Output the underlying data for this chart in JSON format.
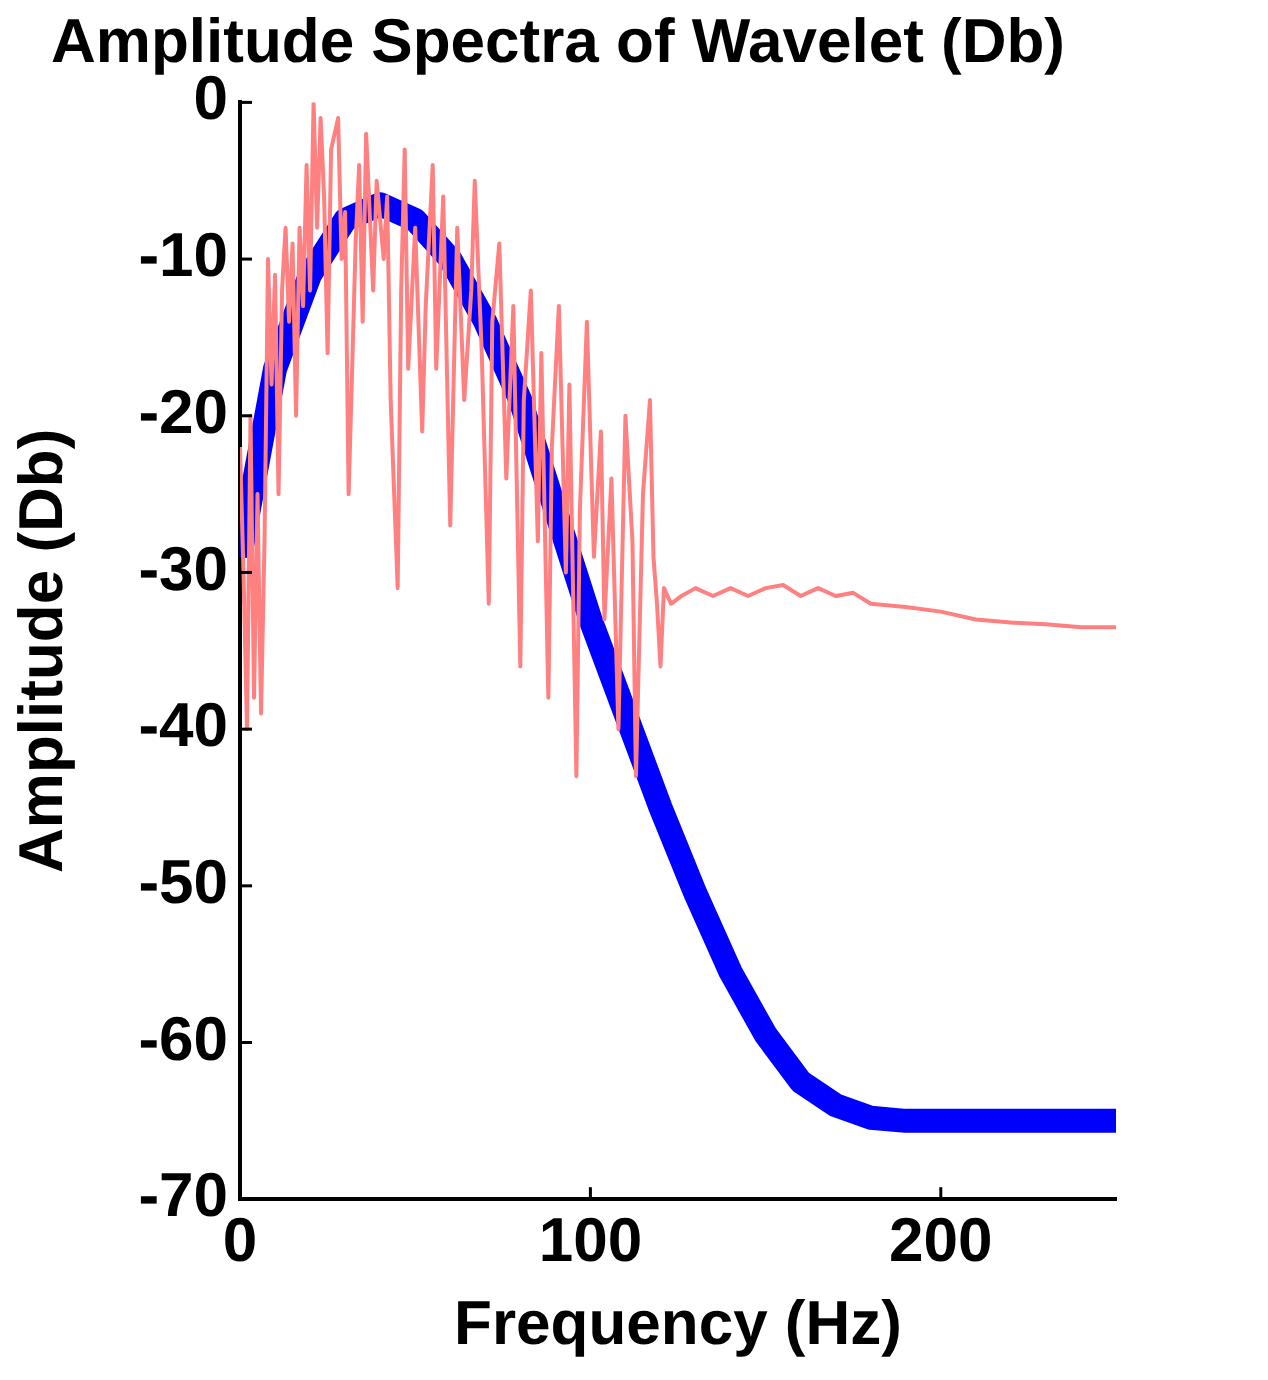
{
  "chart_data": {
    "type": "line",
    "title": "Amplitude Spectra of Wavelet (Db)",
    "xlabel": "Frequency (Hz)",
    "ylabel": "Amplitude (Db)",
    "xlim": [
      0,
      250
    ],
    "xticks": [
      0,
      100,
      200
    ],
    "ylim": [
      -70,
      0
    ],
    "yticks": [
      -70,
      -60,
      -50,
      -40,
      -30,
      -20,
      -10,
      0
    ],
    "grid": false,
    "legend": false,
    "marker": "none",
    "line_style": "solid",
    "series": [
      {
        "color": "#ff8080",
        "x": [
          0,
          1,
          2,
          3,
          4,
          5,
          6,
          7,
          8,
          9,
          10,
          11,
          12,
          13,
          14,
          15,
          16,
          17,
          18,
          19,
          20,
          21,
          22,
          23,
          24,
          25,
          26,
          28,
          29,
          30,
          31,
          33,
          34,
          35,
          36,
          38,
          39,
          41,
          42,
          43,
          45,
          46,
          47,
          48,
          50,
          52,
          53,
          55,
          56,
          58,
          60,
          62,
          64,
          66,
          67,
          69,
          71,
          72,
          74,
          76,
          78,
          80,
          81,
          83,
          85,
          86,
          88,
          89,
          91,
          93,
          94,
          96,
          97,
          99,
          101,
          103,
          104,
          106,
          108,
          110,
          112,
          113,
          115,
          117,
          118,
          119,
          120,
          121,
          123,
          126,
          130,
          135,
          140,
          145,
          150,
          155,
          160,
          165,
          170,
          175,
          180,
          190,
          200,
          210,
          220,
          230,
          240,
          250
        ],
        "values": [
          -22,
          -30,
          -40,
          -20,
          -38,
          -25,
          -39,
          -28,
          -10,
          -18,
          -11,
          -25,
          -12,
          -8,
          -14,
          -9,
          -20,
          -8,
          -13,
          -4,
          -12,
          0,
          -8,
          -1,
          -6,
          -16,
          -3,
          -1,
          -10,
          -7,
          -25,
          -9,
          -4,
          -14,
          -2,
          -12,
          -5,
          -10,
          -6,
          -19,
          -31,
          -12,
          -3,
          -17,
          -8,
          -21,
          -13,
          -4,
          -17,
          -6,
          -27,
          -8,
          -19,
          -12,
          -5,
          -16,
          -32,
          -14,
          -9,
          -24,
          -13,
          -36,
          -19,
          -12,
          -28,
          -16,
          -38,
          -22,
          -13,
          -30,
          -18,
          -43,
          -26,
          -14,
          -29,
          -21,
          -33,
          -24,
          -40,
          -20,
          -28,
          -43,
          -25,
          -19,
          -29,
          -32,
          -36,
          -31,
          -32,
          -31.5,
          -31,
          -31.5,
          -31,
          -31.5,
          -31,
          -30.8,
          -31.5,
          -31,
          -31.5,
          -31.3,
          -32,
          -32.2,
          -32.5,
          -33,
          -33.2,
          -33.3,
          -33.5,
          -33.5
        ]
      },
      {
        "color": "#0000ff",
        "x": [
          0,
          10,
          20,
          30,
          40,
          50,
          60,
          70,
          80,
          90,
          100,
          110,
          120,
          130,
          140,
          150,
          160,
          170,
          180,
          190,
          200,
          250
        ],
        "values": [
          -29,
          -17,
          -11,
          -7.5,
          -6.5,
          -7.5,
          -10,
          -14,
          -19,
          -26,
          -33,
          -39,
          -45,
          -50.5,
          -55.5,
          -59.5,
          -62.5,
          -64,
          -64.8,
          -65,
          -65,
          -65
        ]
      }
    ]
  }
}
